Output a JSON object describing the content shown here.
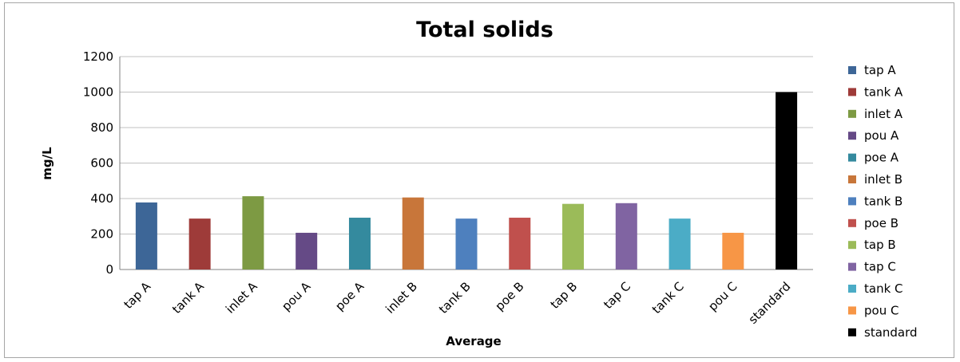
{
  "chart_data": {
    "type": "bar",
    "title": "Total solids",
    "xlabel": "Average",
    "ylabel": "mg/L",
    "ylim": [
      0,
      1200
    ],
    "yticks": [
      0,
      200,
      400,
      600,
      800,
      1000,
      1200
    ],
    "grid": true,
    "legend_position": "right",
    "categories": [
      "tap A",
      "tank A",
      "inlet A",
      "pou A",
      "poe A",
      "inlet B",
      "tank B",
      "poe B",
      "tap B",
      "tap C",
      "tank C",
      "pou C",
      "standard"
    ],
    "values": [
      378,
      287,
      413,
      207,
      292,
      406,
      287,
      292,
      370,
      374,
      287,
      207,
      1000
    ],
    "colors": [
      "#3D6697",
      "#9E3B39",
      "#7D9A43",
      "#654A86",
      "#348A9E",
      "#C8763A",
      "#4E80BE",
      "#C0504D",
      "#9BBB59",
      "#8064A2",
      "#4BACC6",
      "#F79646",
      "#000000"
    ],
    "legend": [
      "tap A",
      "tank A",
      "inlet A",
      "pou A",
      "poe A",
      "inlet B",
      "tank B",
      "poe B",
      "tap B",
      "tap C",
      "tank C",
      "pou C",
      "standard"
    ]
  }
}
